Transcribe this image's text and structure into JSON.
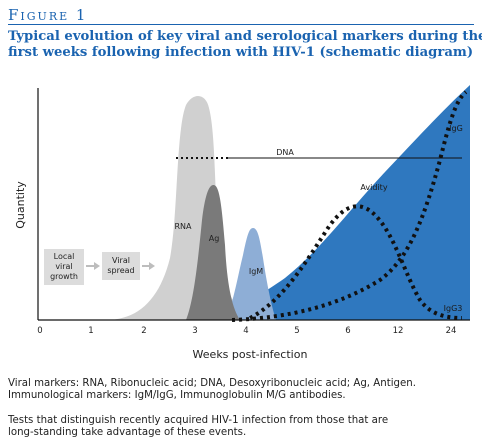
{
  "figure": {
    "label_first": "F",
    "label_rest": "IGURE",
    "label_number": "1",
    "title_line1": "Typical evolution of key viral and serological markers during the",
    "title_line2": "first weeks following infection with HIV-1 (schematic diagram)"
  },
  "axes": {
    "ylabel": "Quantity",
    "xlabel": "Weeks post-infection",
    "xticks": [
      "0",
      "1",
      "2",
      "3",
      "4",
      "5",
      "6",
      "12",
      "24"
    ]
  },
  "stages": [
    {
      "line1": "Local",
      "line2": "viral",
      "line3": "growth"
    },
    {
      "line1": "Viral",
      "line2": "spread",
      "line3": ""
    }
  ],
  "markers": {
    "dna": "DNA",
    "rna": "RNA",
    "ag": "Ag",
    "igm": "IgM",
    "avidity": "Avidity",
    "igg": "IgG",
    "igg3": "IgG3"
  },
  "colors": {
    "title_blue": "#1a63b0",
    "rna_gray": "#d0d0d0",
    "ag_gray": "#7a7a7a",
    "igm_blue": "#8eaed6",
    "avidity_blue": "#2f78bf"
  },
  "captions": {
    "markers_line1": "Viral markers: RNA, Ribonucleic acid; DNA, Desoxyribonucleic acid; Ag, Antigen.",
    "markers_line2": "Immunological markers: IgM/IgG, Immunoglobulin M/G antibodies.",
    "tests_line1": "Tests that distinguish recently acquired HIV-1 infection from those that are",
    "tests_line2": "long-standing take advantage of these events."
  }
}
